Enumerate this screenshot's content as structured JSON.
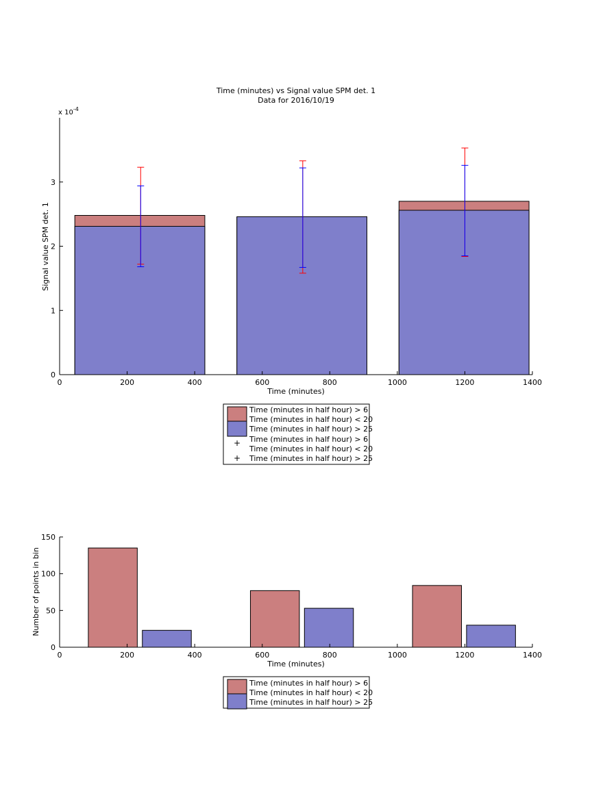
{
  "colors": {
    "series_a": "#cb7f7f",
    "series_b": "#7f7fcb",
    "errbar_a": "#ff0000",
    "errbar_b": "#0000ff",
    "axis": "#000000"
  },
  "chart_data": [
    {
      "type": "bar",
      "title": "Time (minutes) vs Signal value SPM det. 1",
      "subtitle": "Data for 2016/10/19",
      "xlabel": "Time (minutes)",
      "ylabel": "Signal value SPM det. 1",
      "exponent_label": "x 10",
      "exponent_power": "-4",
      "xlim": [
        0,
        1400
      ],
      "ylim": [
        0,
        0.0004
      ],
      "xticks": [
        0,
        200,
        400,
        600,
        800,
        1000,
        1200,
        1400
      ],
      "xtick_labels": [
        "0",
        "200",
        "400",
        "600",
        "800",
        "1000",
        "1200",
        "1400"
      ],
      "yticks": [
        0,
        1,
        2,
        3
      ],
      "ytick_labels": [
        "0",
        "1",
        "2",
        "3"
      ],
      "ytick_scale": 0.0001,
      "grid": false,
      "legend_position": "below",
      "legend": [
        {
          "label_line1": "Time (minutes in half hour) > 6",
          "label_line2": "Time (minutes in half hour) < 20",
          "marker": "patch",
          "series": 0
        },
        {
          "label_line1": "Time (minutes in half hour) > 25",
          "marker": "patch",
          "series": 1
        },
        {
          "label_line1": "Time (minutes in half hour) > 6",
          "label_line2": "Time (minutes in half hour) < 20",
          "marker": "+",
          "series": 0
        },
        {
          "label_line1": "Time (minutes in half hour) > 25",
          "marker": "+",
          "series": 1
        }
      ],
      "bin_edges": [
        [
          45,
          430
        ],
        [
          525,
          910
        ],
        [
          1005,
          1390
        ]
      ],
      "bin_centers": [
        240,
        720,
        1200
      ],
      "series": [
        {
          "name": "Time (minutes in half hour) > 6 Time (minutes in half hour) < 20",
          "values": [
            0.000248,
            0.000245,
            0.00027
          ],
          "err_low": [
            0.000172,
            0.000158,
            0.000184
          ],
          "err_high": [
            0.000323,
            0.000333,
            0.000353
          ]
        },
        {
          "name": "Time (minutes in half hour) > 25",
          "values": [
            0.000231,
            0.000246,
            0.000256
          ],
          "err_low": [
            0.000168,
            0.000167,
            0.000185
          ],
          "err_high": [
            0.000294,
            0.000322,
            0.000326
          ]
        }
      ]
    },
    {
      "type": "bar",
      "title": "",
      "xlabel": "Time (minutes)",
      "ylabel": "Number of points in bin",
      "xlim": [
        0,
        1400
      ],
      "ylim": [
        0,
        150
      ],
      "xticks": [
        0,
        200,
        400,
        600,
        800,
        1000,
        1200,
        1400
      ],
      "xtick_labels": [
        "0",
        "200",
        "400",
        "600",
        "800",
        "1000",
        "1200",
        "1400"
      ],
      "yticks": [
        0,
        50,
        100,
        150
      ],
      "ytick_labels": [
        "0",
        "50",
        "100",
        "150"
      ],
      "grid": false,
      "legend_position": "below",
      "legend": [
        {
          "label_line1": "Time (minutes in half hour) > 6",
          "label_line2": "Time (minutes in half hour) < 20",
          "marker": "patch",
          "series": 0
        },
        {
          "label_line1": "Time (minutes in half hour) > 25",
          "marker": "patch",
          "series": 1
        }
      ],
      "series": [
        {
          "name": "Time (minutes in half hour) > 6 Time (minutes in half hour) < 20",
          "bars": [
            [
              85,
              230
            ],
            [
              565,
              710
            ],
            [
              1045,
              1190
            ]
          ],
          "values": [
            135,
            77,
            84
          ]
        },
        {
          "name": "Time (minutes in half hour) > 25",
          "bars": [
            [
              245,
              390
            ],
            [
              725,
              870
            ],
            [
              1205,
              1350
            ]
          ],
          "values": [
            23,
            53,
            30
          ]
        }
      ]
    }
  ]
}
